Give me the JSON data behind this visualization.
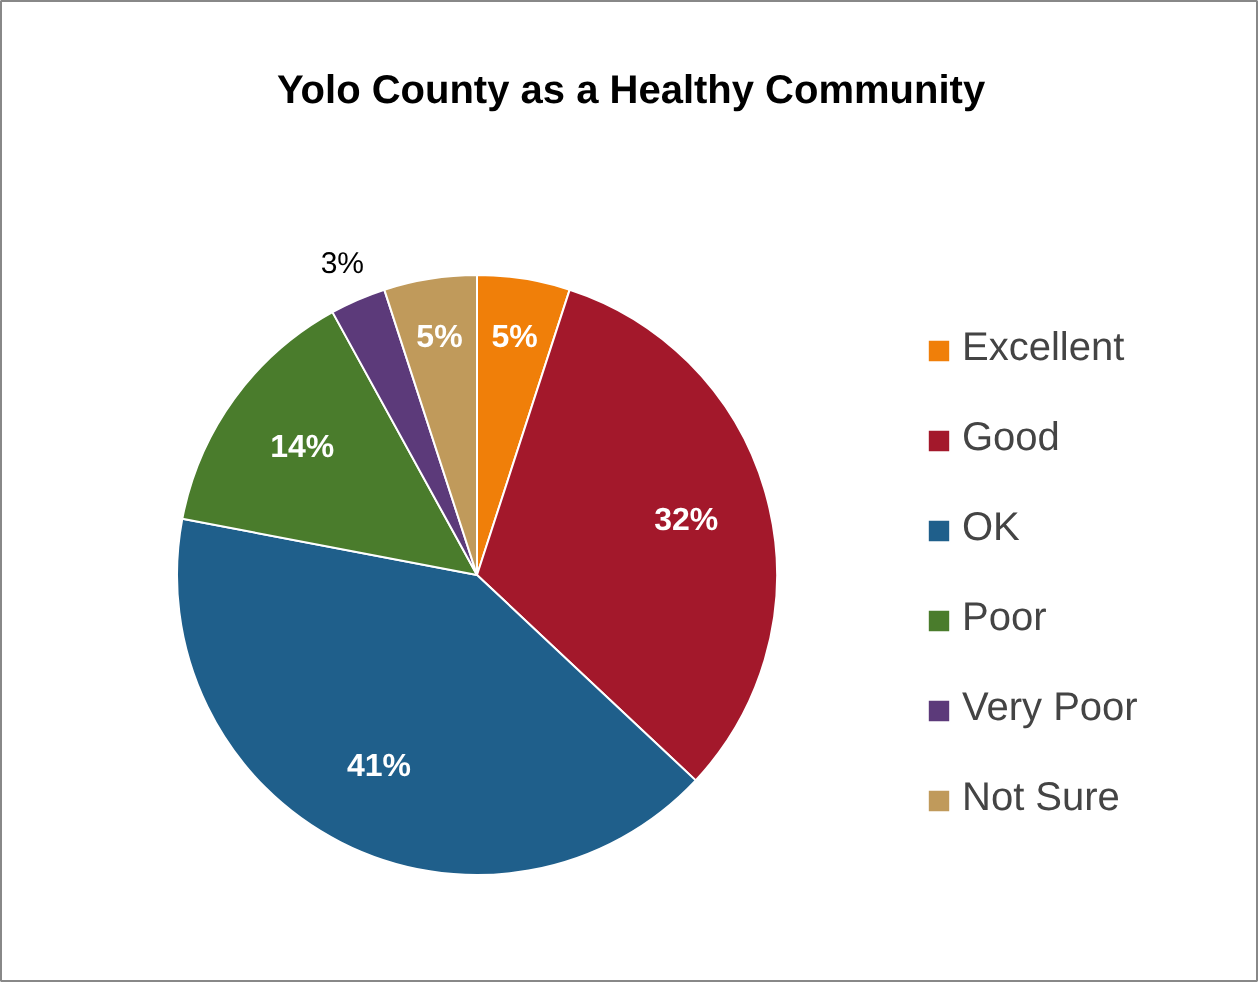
{
  "chart_data": {
    "type": "pie",
    "title": "Yolo County as a Healthy Community",
    "categories": [
      "Excellent",
      "Good",
      "OK",
      "Poor",
      "Very Poor",
      "Not Sure"
    ],
    "values": [
      5,
      32,
      41,
      14,
      3,
      5
    ],
    "value_labels": [
      "5%",
      "32%",
      "41%",
      "14%",
      "3%",
      "5%"
    ],
    "colors": [
      "#f07f09",
      "#a3182b",
      "#1f5f8b",
      "#4a7c2c",
      "#5c3a7a",
      "#c09a5b"
    ],
    "legend": "right"
  }
}
